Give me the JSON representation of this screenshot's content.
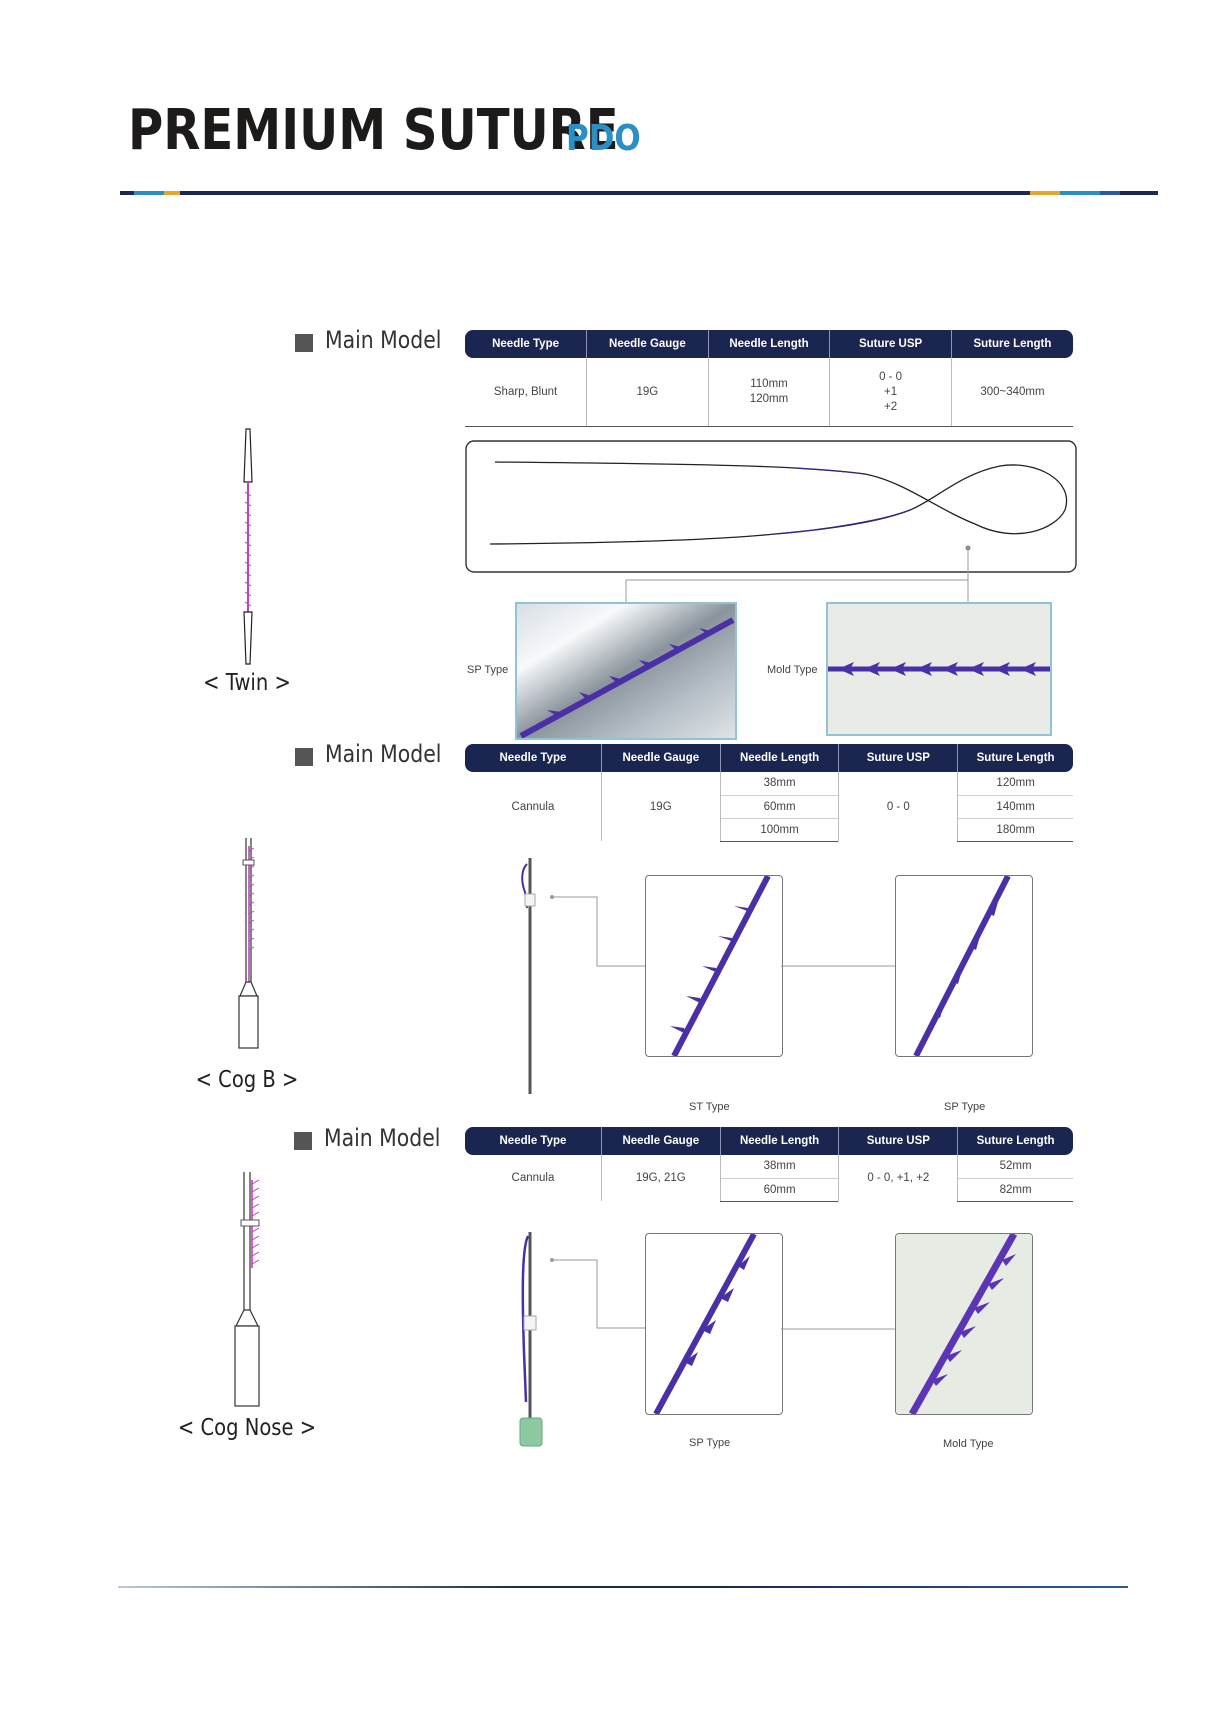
{
  "header": {
    "title": "PREMIUM SUTURE",
    "subtitle": "PDO"
  },
  "colors": {
    "navy": "#1b2650",
    "accent_blue": "#2a8fc4",
    "accent_gold": "#e3a82b",
    "thread_purple": "#4a2fa5"
  },
  "sections": [
    {
      "label": "Main Model",
      "model_name": "< Twin >",
      "table": {
        "headers": [
          "Needle Type",
          "Needle Gauge",
          "Needle Length",
          "Suture USP",
          "Suture Length"
        ],
        "row": {
          "needle_type": "Sharp, Blunt",
          "needle_gauge": "19G",
          "needle_length": [
            "110mm",
            "120mm"
          ],
          "suture_usp": [
            "0 - 0",
            "+1",
            "+2"
          ],
          "suture_length": "300~340mm"
        }
      },
      "detail_labels": [
        "SP Type",
        "Mold Type"
      ]
    },
    {
      "label": "Main Model",
      "model_name": "< Cog B >",
      "table": {
        "headers": [
          "Needle Type",
          "Needle Gauge",
          "Needle Length",
          "Suture USP",
          "Suture Length"
        ],
        "needle_type": "Cannula",
        "needle_gauge": "19G",
        "needle_lengths": [
          "38mm",
          "60mm",
          "100mm"
        ],
        "suture_usp": "0 - 0",
        "suture_lengths": [
          "120mm",
          "140mm",
          "180mm"
        ]
      },
      "detail_labels": [
        "ST Type",
        "SP Type"
      ]
    },
    {
      "label": "Main Model",
      "model_name": "< Cog Nose >",
      "table": {
        "headers": [
          "Needle Type",
          "Needle Gauge",
          "Needle Length",
          "Suture USP",
          "Suture Length"
        ],
        "needle_type": "Cannula",
        "needle_gauge": "19G, 21G",
        "needle_lengths": [
          "38mm",
          "60mm"
        ],
        "suture_usp": "0 - 0, +1, +2",
        "suture_lengths": [
          "52mm",
          "82mm"
        ]
      },
      "detail_labels": [
        "SP Type",
        "Mold Type"
      ]
    }
  ]
}
